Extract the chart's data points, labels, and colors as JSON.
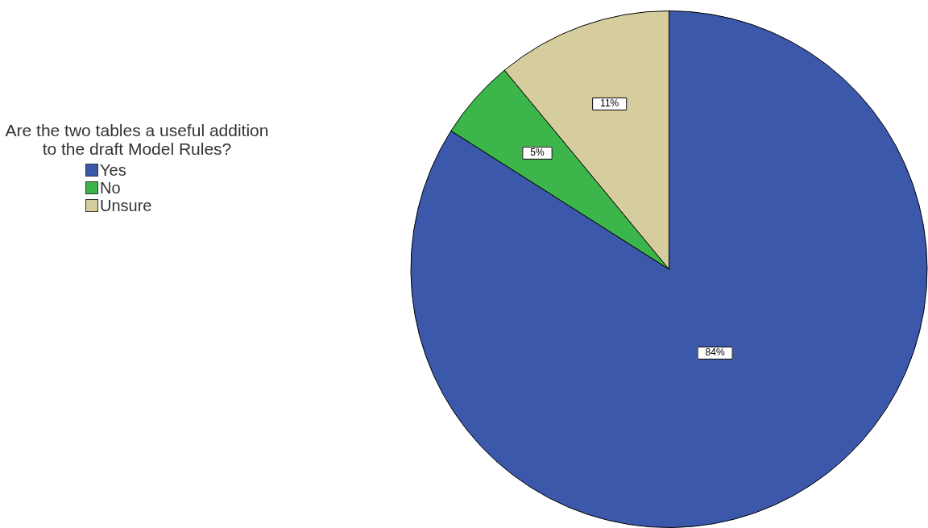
{
  "chart_data": {
    "type": "pie",
    "legend_title": "Are the two tables a useful addition to the draft Model Rules?",
    "categories": [
      "Yes",
      "No",
      "Unsure"
    ],
    "values": [
      84,
      5,
      11
    ],
    "colors": [
      "#3c58aa",
      "#3cb64a",
      "#d6cd9e"
    ],
    "value_labels": [
      "84%",
      "5%",
      "11%"
    ],
    "legend": "left"
  }
}
